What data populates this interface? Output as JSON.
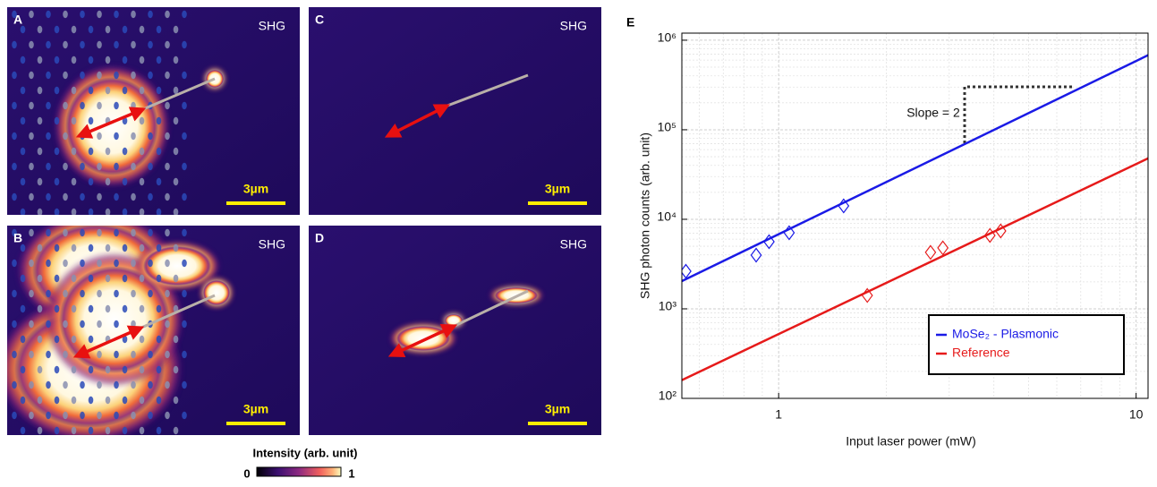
{
  "panels": [
    {
      "label": "A",
      "tag": "SHG",
      "scale": "3µm"
    },
    {
      "label": "B",
      "tag": "SHG",
      "scale": "3µm"
    },
    {
      "label": "C",
      "tag": "SHG",
      "scale": "3µm"
    },
    {
      "label": "D",
      "tag": "SHG",
      "scale": "3µm"
    }
  ],
  "colorbar": {
    "title": "Intensity (arb. unit)",
    "min": 0,
    "max": 1
  },
  "chart_data": {
    "type": "scatter",
    "panel_label": "E",
    "annotation": "Slope = 2",
    "xlabel": "Input laser power (mW)",
    "ylabel": "SHG photon counts (arb. unit)",
    "xscale": "log",
    "yscale": "log",
    "grid": true,
    "legend": "lower right",
    "xlim": [
      0.536,
      10.8
    ],
    "ylim": [
      100,
      1200000
    ],
    "xticks": [
      1,
      10
    ],
    "yticks": [
      {
        "value": 100,
        "label": "10²"
      },
      {
        "value": 1000,
        "label": "10³"
      },
      {
        "value": 10000,
        "label": "10⁴"
      },
      {
        "value": 100000,
        "label": "10⁵"
      },
      {
        "value": 1000000,
        "label": "10⁶"
      }
    ],
    "xminor_ticks": [
      0.6,
      0.7,
      0.8,
      0.9,
      2,
      3,
      4,
      5,
      6,
      7,
      8,
      9
    ],
    "yminor_ticks": [
      200,
      300,
      400,
      500,
      600,
      700,
      800,
      900,
      2000,
      3000,
      4000,
      5000,
      6000,
      7000,
      8000,
      9000,
      20000,
      30000,
      40000,
      50000,
      60000,
      70000,
      80000,
      90000,
      200000,
      300000,
      400000,
      500000,
      600000,
      700000,
      800000,
      900000
    ],
    "series": [
      {
        "name": "MoSe₂ - Plasmonic",
        "color": "#1a1ae6",
        "x": [
          0.55,
          0.865,
          0.94,
          1.07,
          1.52
        ],
        "values": [
          2630,
          3980,
          5620,
          7080,
          14100
        ],
        "fit": {
          "x": [
            0.536,
            10.8
          ],
          "values": [
            2040,
            680000
          ]
        }
      },
      {
        "name": "Reference",
        "color": "#e61a1a",
        "x": [
          1.77,
          2.66,
          2.88,
          3.9,
          4.18
        ],
        "values": [
          1410,
          4270,
          4790,
          6610,
          7410
        ],
        "fit": {
          "x": [
            0.536,
            10.8
          ],
          "values": [
            160,
            47900
          ]
        }
      }
    ]
  }
}
